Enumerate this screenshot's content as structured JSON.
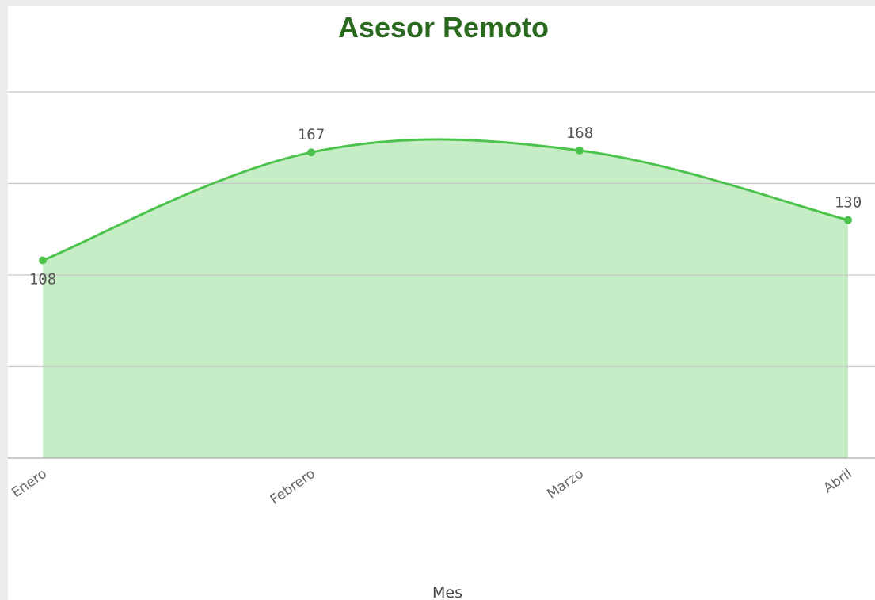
{
  "chart_data": {
    "type": "area",
    "title": "Asesor Remoto",
    "categories": [
      "Enero",
      "Febrero",
      "Marzo",
      "Abril"
    ],
    "values": [
      108,
      167,
      168,
      130
    ],
    "color": "#4cc34c",
    "fill": "#c6edc6",
    "x_label": "Mes",
    "ylim": [
      0,
      200
    ],
    "yticks": [
      0,
      50,
      100,
      150,
      200
    ],
    "grid": true
  }
}
